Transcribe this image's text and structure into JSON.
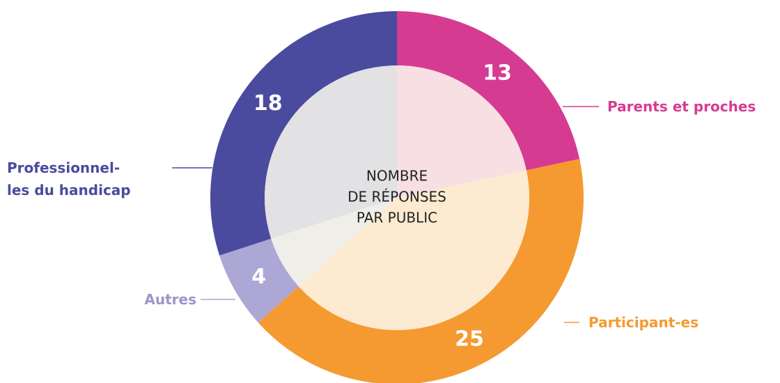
{
  "chart_data": {
    "type": "donut",
    "title_lines": [
      "NOMBRE",
      "DE RÉPONSES",
      "PAR PUBLIC"
    ],
    "categories": [
      "Parents et proches",
      "Participant-es",
      "Autres",
      "Professionnel-les du handicap"
    ],
    "values": [
      13,
      25,
      4,
      18
    ],
    "colors": [
      "#d63b92",
      "#f59a31",
      "#aca7d5",
      "#4a4b9e"
    ],
    "inner_colors": [
      "#f7dfe3",
      "#fcebd0",
      "#f0eee9",
      "#e2e1e3"
    ]
  }
}
